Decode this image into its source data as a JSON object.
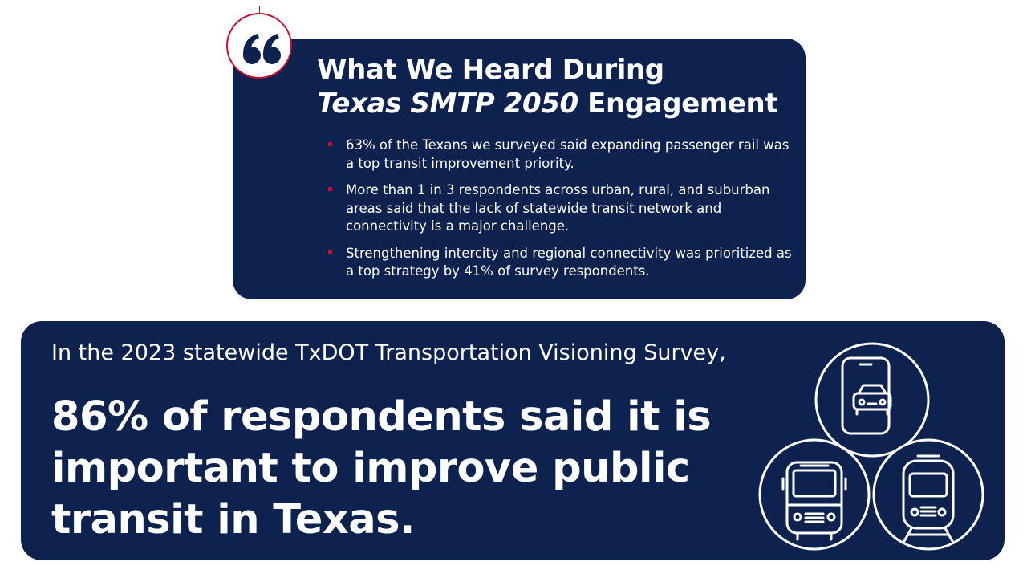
{
  "engagement": {
    "title_line1": "What We Heard During",
    "title_em": "Texas SMTP 2050",
    "title_rest": " Engagement",
    "bullets": [
      "63% of the Texans we surveyed said expanding passenger rail was a top transit improvement priority.",
      "More than 1 in 3 respondents across urban, rural, and suburban areas said that the lack of statewide transit network and connectivity is a major challenge.",
      "Strengthening intercity and regional connectivity was prioritized as a top strategy by 41% of survey respondents."
    ]
  },
  "survey": {
    "intro": "In the 2023 statewide TxDOT Transportation Visioning Survey,",
    "stat_line1": "86% of respondents said it is",
    "stat_line2": "important to improve public",
    "stat_line3": "transit in Texas."
  },
  "icons": [
    "quote-icon",
    "phone-car-icon",
    "bus-icon",
    "train-icon"
  ],
  "colors": {
    "navy": "#0e2250",
    "accent_red": "#c8102e",
    "text": "#ffffff"
  }
}
